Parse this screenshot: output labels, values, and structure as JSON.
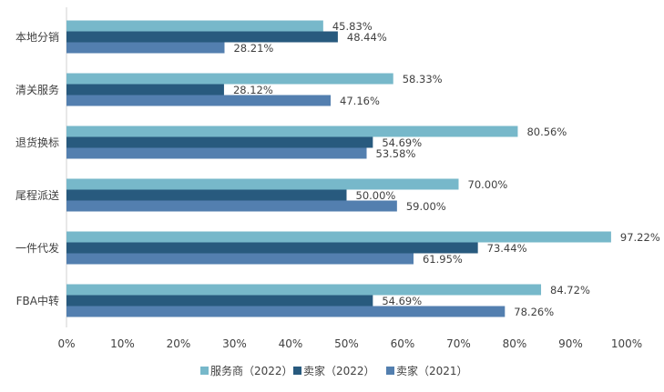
{
  "chart_data": {
    "type": "bar",
    "orientation": "horizontal",
    "title": "",
    "xlabel": "",
    "ylabel": "",
    "categories": [
      "本地分销",
      "清关服务",
      "退货换标",
      "尾程派送",
      "一件代发",
      "FBA中转"
    ],
    "series": [
      {
        "name": "服务商（2022）",
        "color": "#77B8CA",
        "values": [
          45.83,
          58.33,
          80.56,
          70.0,
          97.22,
          84.72
        ],
        "labels": [
          "45.83%",
          "58.33%",
          "80.56%",
          "70.00%",
          "97.22%",
          "84.72%"
        ]
      },
      {
        "name": "卖家（2022）",
        "color": "#285A7E",
        "values": [
          48.44,
          28.12,
          54.69,
          50.0,
          73.44,
          54.69
        ],
        "labels": [
          "48.44%",
          "28.12%",
          "54.69%",
          "50.00%",
          "73.44%",
          "54.69%"
        ]
      },
      {
        "name": "卖家（2021）",
        "color": "#537FAF",
        "values": [
          28.21,
          47.16,
          53.58,
          59.0,
          61.95,
          78.26
        ],
        "labels": [
          "28.21%",
          "47.16%",
          "53.58%",
          "59.00%",
          "61.95%",
          "78.26%"
        ]
      }
    ],
    "xlim": [
      0,
      100
    ],
    "xticks": [
      "0%",
      "10%",
      "20%",
      "30%",
      "40%",
      "50%",
      "60%",
      "70%",
      "80%",
      "90%",
      "100%"
    ],
    "grid": false,
    "legend_position": "bottom"
  }
}
